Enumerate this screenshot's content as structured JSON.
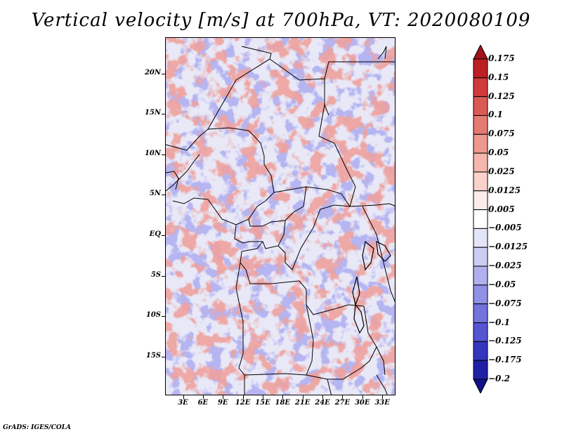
{
  "title": "Vertical velocity [m/s] at 700hPa, VT: 2020080109",
  "credit": "GrADS: IGES/COLA",
  "lat_labels": [
    {
      "text": "20N",
      "lat": 20
    },
    {
      "text": "15N",
      "lat": 15
    },
    {
      "text": "10N",
      "lat": 10
    },
    {
      "text": "5N",
      "lat": 5
    },
    {
      "text": "EQ",
      "lat": 0
    },
    {
      "text": "5S",
      "lat": -5
    },
    {
      "text": "10S",
      "lat": -10
    },
    {
      "text": "15S",
      "lat": -15
    }
  ],
  "lon_labels": [
    {
      "text": "3E",
      "lon": 3
    },
    {
      "text": "6E",
      "lon": 6
    },
    {
      "text": "9E",
      "lon": 9
    },
    {
      "text": "12E",
      "lon": 12
    },
    {
      "text": "15E",
      "lon": 15
    },
    {
      "text": "18E",
      "lon": 18
    },
    {
      "text": "21E",
      "lon": 21
    },
    {
      "text": "24E",
      "lon": 24
    },
    {
      "text": "27E",
      "lon": 27
    },
    {
      "text": "30E",
      "lon": 30
    },
    {
      "text": "33E",
      "lon": 33
    }
  ],
  "lat_range": [
    -19.8,
    24.5
  ],
  "lon_range": [
    0.3,
    35
  ],
  "colorbar": {
    "levels": [
      "0.175",
      "0.15",
      "0.125",
      "0.1",
      "0.075",
      "0.05",
      "0.025",
      "0.0125",
      "0.005",
      "−0.005",
      "−0.0125",
      "−0.025",
      "−0.05",
      "−0.075",
      "−0.1",
      "−0.125",
      "−0.175",
      "−0.2"
    ],
    "colors": [
      "#a01419",
      "#bd2024",
      "#d13a3a",
      "#dc5a55",
      "#e57a72",
      "#ee978e",
      "#f5b6ae",
      "#fad2cc",
      "#fdeceb",
      "#ffffff",
      "#e4e4f8",
      "#cdcdf3",
      "#b0b0ee",
      "#9090e6",
      "#7373dd",
      "#5555d2",
      "#3535bf",
      "#2020a6",
      "#11118a"
    ]
  }
}
